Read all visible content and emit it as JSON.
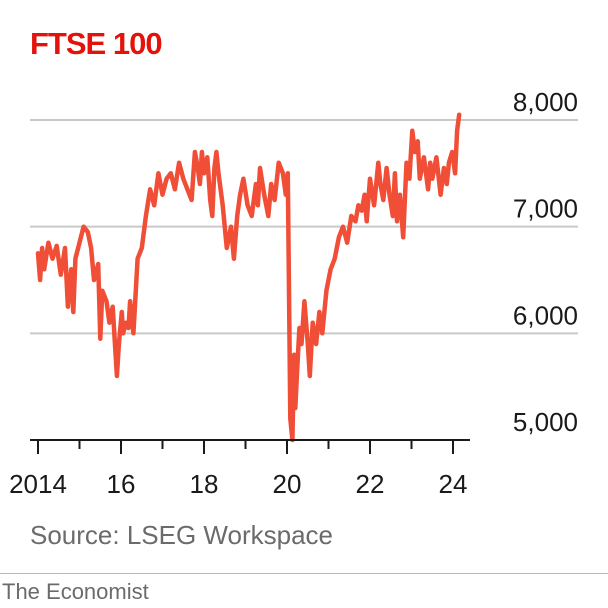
{
  "chart_data": {
    "type": "line",
    "title": "FTSE 100",
    "source": "Source: LSEG Workspace",
    "credit": "The Economist",
    "y_ticks": [
      "8,000",
      "7,000",
      "6,000",
      "5,000"
    ],
    "y_tick_values": [
      8000,
      7000,
      6000,
      5000
    ],
    "ylim": [
      5000,
      8000
    ],
    "x_tick_labels": [
      "2014",
      "16",
      "18",
      "20",
      "22",
      "24"
    ],
    "x_tick_values": [
      2014,
      2016,
      2018,
      2020,
      2022,
      2024
    ],
    "xlim": [
      2014.0,
      2024.2
    ],
    "grid": true,
    "colors": {
      "line": "#f04e37",
      "title": "#e3120b",
      "grid": "#c9c9c9",
      "axis": "#1a1a1a"
    },
    "series": [
      {
        "x": [
          2014.0,
          2014.05,
          2014.1,
          2014.15,
          2014.25,
          2014.35,
          2014.45,
          2014.55,
          2014.65,
          2014.72,
          2014.8,
          2014.85,
          2014.9,
          2015.0,
          2015.1,
          2015.2,
          2015.28,
          2015.35,
          2015.45,
          2015.5,
          2015.55,
          2015.65,
          2015.72,
          2015.8,
          2015.9,
          2015.95,
          2016.02,
          2016.05,
          2016.12,
          2016.18,
          2016.22,
          2016.3,
          2016.4,
          2016.5,
          2016.6,
          2016.7,
          2016.8,
          2016.9,
          2017.0,
          2017.1,
          2017.2,
          2017.3,
          2017.4,
          2017.5,
          2017.6,
          2017.7,
          2017.78,
          2017.85,
          2017.9,
          2017.95,
          2018.0,
          2018.08,
          2018.15,
          2018.2,
          2018.25,
          2018.3,
          2018.35,
          2018.45,
          2018.55,
          2018.65,
          2018.72,
          2018.8,
          2018.87,
          2018.95,
          2019.05,
          2019.15,
          2019.25,
          2019.3,
          2019.35,
          2019.45,
          2019.55,
          2019.62,
          2019.7,
          2019.8,
          2019.9,
          2019.97,
          2020.02,
          2020.08,
          2020.13,
          2020.17,
          2020.2,
          2020.25,
          2020.3,
          2020.35,
          2020.42,
          2020.5,
          2020.55,
          2020.62,
          2020.7,
          2020.78,
          2020.85,
          2020.95,
          2021.05,
          2021.15,
          2021.25,
          2021.35,
          2021.45,
          2021.55,
          2021.65,
          2021.72,
          2021.8,
          2021.87,
          2021.92,
          2022.0,
          2022.1,
          2022.2,
          2022.25,
          2022.32,
          2022.4,
          2022.47,
          2022.55,
          2022.6,
          2022.65,
          2022.72,
          2022.8,
          2022.88,
          2022.95,
          2023.02,
          2023.08,
          2023.15,
          2023.2,
          2023.3,
          2023.4,
          2023.45,
          2023.5,
          2023.6,
          2023.7,
          2023.78,
          2023.85,
          2023.9,
          2023.98,
          2024.05,
          2024.1,
          2024.15
        ],
        "values": [
          6750,
          6500,
          6800,
          6600,
          6850,
          6700,
          6820,
          6550,
          6800,
          6250,
          6600,
          6200,
          6700,
          6850,
          7000,
          6950,
          6800,
          6500,
          6650,
          5950,
          6400,
          6300,
          6100,
          6250,
          5600,
          5900,
          6200,
          6000,
          6100,
          6050,
          6300,
          6000,
          6700,
          6800,
          7100,
          7350,
          7200,
          7500,
          7300,
          7450,
          7500,
          7350,
          7600,
          7450,
          7350,
          7250,
          7700,
          7550,
          7400,
          7700,
          7500,
          7650,
          7250,
          7100,
          7550,
          7700,
          7500,
          7200,
          6800,
          7000,
          6700,
          7100,
          7300,
          7450,
          7200,
          7100,
          7400,
          7200,
          7550,
          7300,
          7100,
          7400,
          7250,
          7600,
          7500,
          7300,
          7500,
          5200,
          5000,
          5800,
          5300,
          5700,
          6050,
          5900,
          6300,
          5900,
          5600,
          6100,
          5900,
          6200,
          6000,
          6400,
          6600,
          6700,
          6900,
          7000,
          6850,
          7100,
          7050,
          7200,
          7150,
          7300,
          7050,
          7450,
          7200,
          7600,
          7400,
          7250,
          7550,
          7300,
          7100,
          7500,
          7050,
          7300,
          6900,
          7600,
          7450,
          7900,
          7700,
          7800,
          7450,
          7650,
          7350,
          7600,
          7450,
          7650,
          7300,
          7550,
          7400,
          7600,
          7700,
          7500,
          7900,
          8050
        ]
      }
    ]
  }
}
